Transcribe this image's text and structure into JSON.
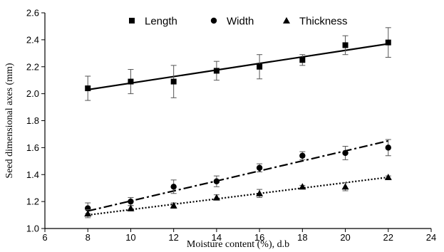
{
  "chart_data": {
    "type": "scatter",
    "title": "",
    "xlabel": "Moisture content (%), d.b",
    "ylabel": "Seed dimensional axes (mm)",
    "xlim": [
      6,
      24
    ],
    "ylim": [
      1.0,
      2.6
    ],
    "xticks": [
      6,
      8,
      10,
      12,
      14,
      16,
      18,
      20,
      22,
      24
    ],
    "yticks": [
      1.0,
      1.2,
      1.4,
      1.6,
      1.8,
      2.0,
      2.2,
      2.4,
      2.6
    ],
    "ytick_labels": [
      "1.0",
      "1.2",
      "1.4",
      "1.6",
      "1.8",
      "2.0",
      "2.2",
      "2.4",
      "2.6"
    ],
    "grid": false,
    "legend_position": "top",
    "series": [
      {
        "name": "Length",
        "marker": "square",
        "line_style": "solid",
        "x": [
          8,
          10,
          12,
          14,
          16,
          18,
          20,
          22
        ],
        "y": [
          2.04,
          2.09,
          2.09,
          2.17,
          2.2,
          2.25,
          2.36,
          2.38
        ],
        "error": [
          0.09,
          0.09,
          0.12,
          0.07,
          0.09,
          0.04,
          0.07,
          0.11
        ],
        "trend": [
          [
            8,
            2.03
          ],
          [
            22,
            2.37
          ]
        ]
      },
      {
        "name": "Width",
        "marker": "circle",
        "line_style": "dash-dot",
        "x": [
          8,
          10,
          12,
          14,
          16,
          18,
          20,
          22
        ],
        "y": [
          1.15,
          1.2,
          1.31,
          1.35,
          1.45,
          1.54,
          1.56,
          1.6
        ],
        "error": [
          0.04,
          0.03,
          0.05,
          0.04,
          0.03,
          0.03,
          0.05,
          0.06
        ],
        "trend": [
          [
            8,
            1.13
          ],
          [
            22,
            1.65
          ]
        ]
      },
      {
        "name": "Thickness",
        "marker": "triangle",
        "line_style": "dotted",
        "x": [
          8,
          10,
          12,
          14,
          16,
          18,
          20,
          22
        ],
        "y": [
          1.11,
          1.15,
          1.17,
          1.23,
          1.26,
          1.31,
          1.31,
          1.38
        ],
        "error": [
          0.03,
          0.02,
          0.02,
          0.02,
          0.03,
          0.01,
          0.03,
          0.01
        ],
        "trend": [
          [
            8,
            1.1
          ],
          [
            22,
            1.38
          ]
        ]
      }
    ]
  }
}
